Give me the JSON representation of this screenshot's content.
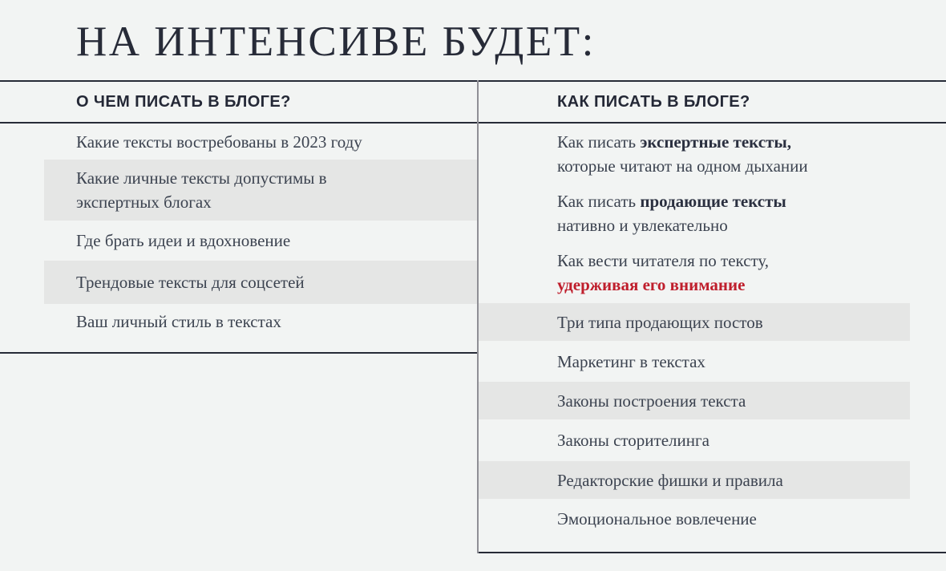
{
  "title": "НА ИНТЕНСИВЕ БУДЕТ:",
  "colors": {
    "background": "#f2f4f3",
    "stripe": "#e5e6e5",
    "rule_dark": "#272b37",
    "divider_gray": "#8f8f95",
    "text_dark": "#3c4350",
    "heading_dark": "#242836",
    "accent_red": "#bf1e2c"
  },
  "left_column": {
    "header": "О ЧЕМ ПИСАТЬ В БЛОГЕ?",
    "items": [
      {
        "shaded": false,
        "lines": [
          [
            {
              "t": "Какие тексты востребованы в 2023 году",
              "s": "n"
            }
          ]
        ]
      },
      {
        "shaded": true,
        "lines": [
          [
            {
              "t": "Какие личные тексты допустимы в",
              "s": "n"
            }
          ],
          [
            {
              "t": "экспертных блогах",
              "s": "n"
            }
          ]
        ]
      },
      {
        "shaded": false,
        "lines": [
          [
            {
              "t": "Где брать идеи и вдохновение",
              "s": "n"
            }
          ]
        ]
      },
      {
        "shaded": true,
        "lines": [
          [
            {
              "t": "Трендовые тексты для соцсетей",
              "s": "n"
            }
          ]
        ]
      },
      {
        "shaded": false,
        "lines": [
          [
            {
              "t": "Ваш личный стиль в текстах",
              "s": "n"
            }
          ]
        ]
      }
    ]
  },
  "right_column": {
    "header": "КАК ПИСАТЬ В БЛОГЕ?",
    "items": [
      {
        "shaded": false,
        "lines": [
          [
            {
              "t": "Как писать ",
              "s": "n"
            },
            {
              "t": "экспертные тексты,",
              "s": "b"
            }
          ],
          [
            {
              "t": "которые читают на одном дыхании",
              "s": "n"
            }
          ]
        ]
      },
      {
        "shaded": false,
        "lines": [
          [
            {
              "t": "Как писать ",
              "s": "n"
            },
            {
              "t": "продающие тексты",
              "s": "b"
            }
          ],
          [
            {
              "t": "нативно и увлекательно",
              "s": "n"
            }
          ]
        ]
      },
      {
        "shaded": false,
        "lines": [
          [
            {
              "t": "Как вести читателя по тексту,",
              "s": "n"
            }
          ],
          [
            {
              "t": "удерживая его внимание",
              "s": "r"
            }
          ]
        ]
      },
      {
        "shaded": true,
        "lines": [
          [
            {
              "t": "Три типа продающих постов",
              "s": "n"
            }
          ]
        ]
      },
      {
        "shaded": false,
        "lines": [
          [
            {
              "t": "Маркетинг в текстах",
              "s": "n"
            }
          ]
        ]
      },
      {
        "shaded": true,
        "lines": [
          [
            {
              "t": "Законы построения текста",
              "s": "n"
            }
          ]
        ]
      },
      {
        "shaded": false,
        "lines": [
          [
            {
              "t": "Законы сторителинга",
              "s": "n"
            }
          ]
        ]
      },
      {
        "shaded": true,
        "lines": [
          [
            {
              "t": "Редакторские фишки и правила",
              "s": "n"
            }
          ]
        ]
      },
      {
        "shaded": false,
        "lines": [
          [
            {
              "t": "Эмоциональное вовлечение",
              "s": "n"
            }
          ]
        ]
      }
    ]
  }
}
